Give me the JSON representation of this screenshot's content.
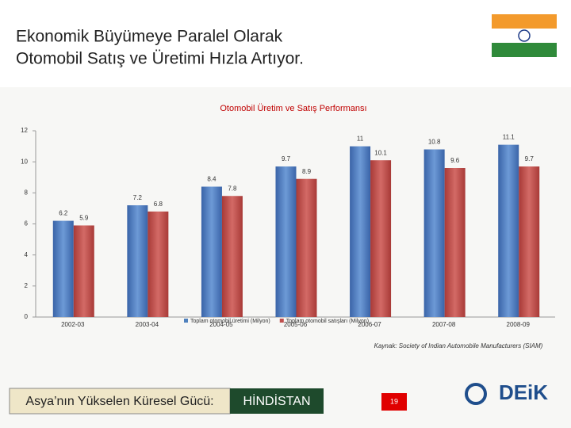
{
  "slide": {
    "title_line1": "Ekonomik Büyümeye Paralel Olarak",
    "title_line2": "Otomobil Satış ve Üretimi Hızla Artıyor.",
    "source": "Kaynak: Society of Indian Automobile Manufacturers (SIAM)",
    "footer_text": "Asya’nın Yükselen Küresel Gücü:",
    "footer_country": "HİNDİSTAN",
    "page_number": "19",
    "logo": "DEiK"
  },
  "chart_data": {
    "type": "bar",
    "title": "Otomobil Üretim ve Satış Performansı",
    "categories": [
      "2002-03",
      "2003-04",
      "2004-05",
      "2005-06",
      "2006-07",
      "2007-08",
      "2008-09"
    ],
    "series": [
      {
        "name": "Toplam otomobil üretimi (Milyon)",
        "color": "#4f81bd",
        "values": [
          6.2,
          7.2,
          8.4,
          9.7,
          11,
          10.8,
          11.1
        ]
      },
      {
        "name": "Toplam otomobil satışları (Milyon)",
        "color": "#c0504d",
        "values": [
          5.9,
          6.8,
          7.8,
          8.9,
          10.1,
          9.6,
          9.7
        ]
      }
    ],
    "ylim": [
      0,
      12
    ],
    "yticks": [
      0,
      2,
      4,
      6,
      8,
      10,
      12
    ],
    "grid": false,
    "legend": "bottom"
  }
}
